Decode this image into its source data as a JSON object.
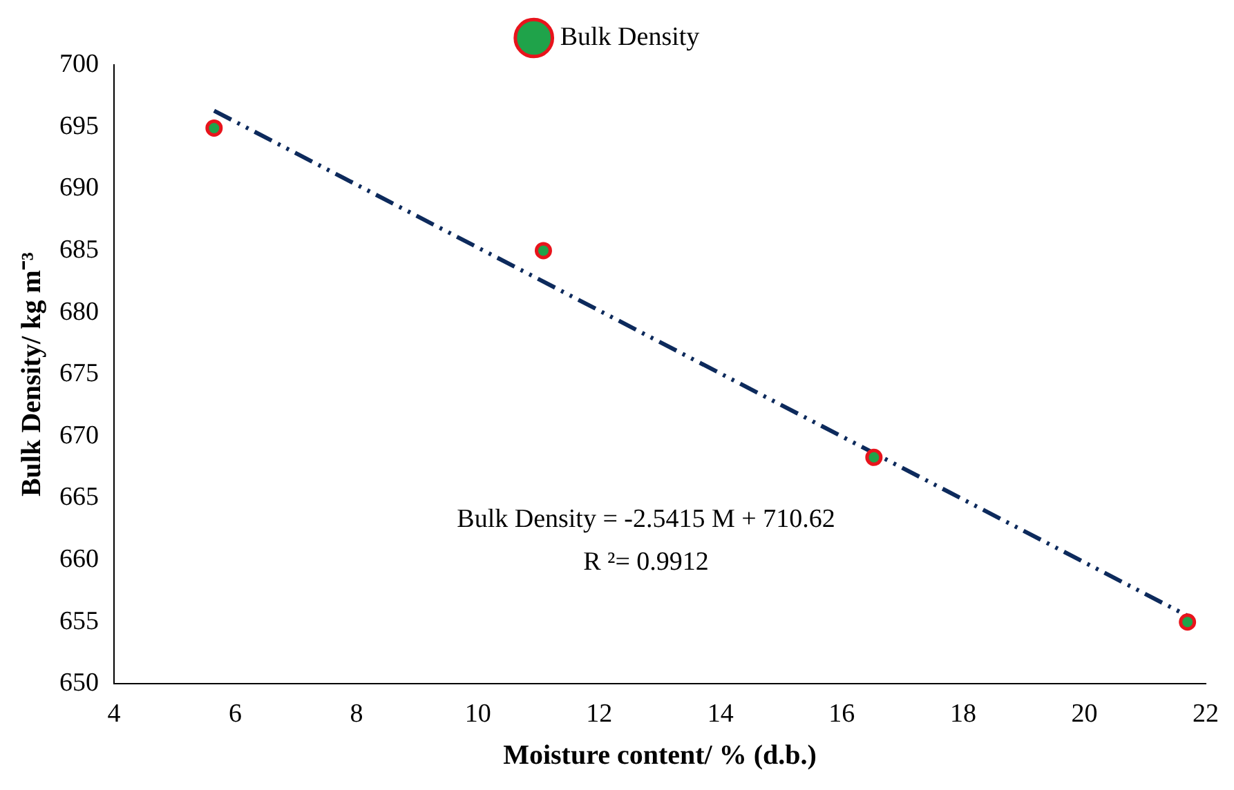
{
  "chart_data": {
    "type": "scatter",
    "xlabel": "Moisture content/ % (d.b.)",
    "ylabel": "Bulk Density/ kg m⁻³",
    "xlim": [
      4,
      22
    ],
    "xticks": [
      4,
      6,
      8,
      10,
      12,
      14,
      16,
      18,
      20,
      22
    ],
    "ylim": [
      650,
      700
    ],
    "yticks": [
      650,
      655,
      660,
      665,
      670,
      675,
      680,
      685,
      690,
      695,
      700
    ],
    "grid": false,
    "legend": "top",
    "marker": "circle",
    "series": [
      {
        "name": "Bulk Density",
        "color": "#1fa34a",
        "x": [
          5.65,
          11.08,
          16.53,
          21.7
        ],
        "values": [
          694.9,
          685,
          668.3,
          655
        ]
      },
      {
        "type": "line",
        "color": "#0d2a5c",
        "line_style": "dashed",
        "marker": "none",
        "x": [
          5.65,
          21.7
        ],
        "values": [
          696.3,
          655.5
        ]
      }
    ],
    "annotations": [
      "Bulk Density = -2.5415 M + 710.62",
      "R ²= 0.9912"
    ]
  }
}
